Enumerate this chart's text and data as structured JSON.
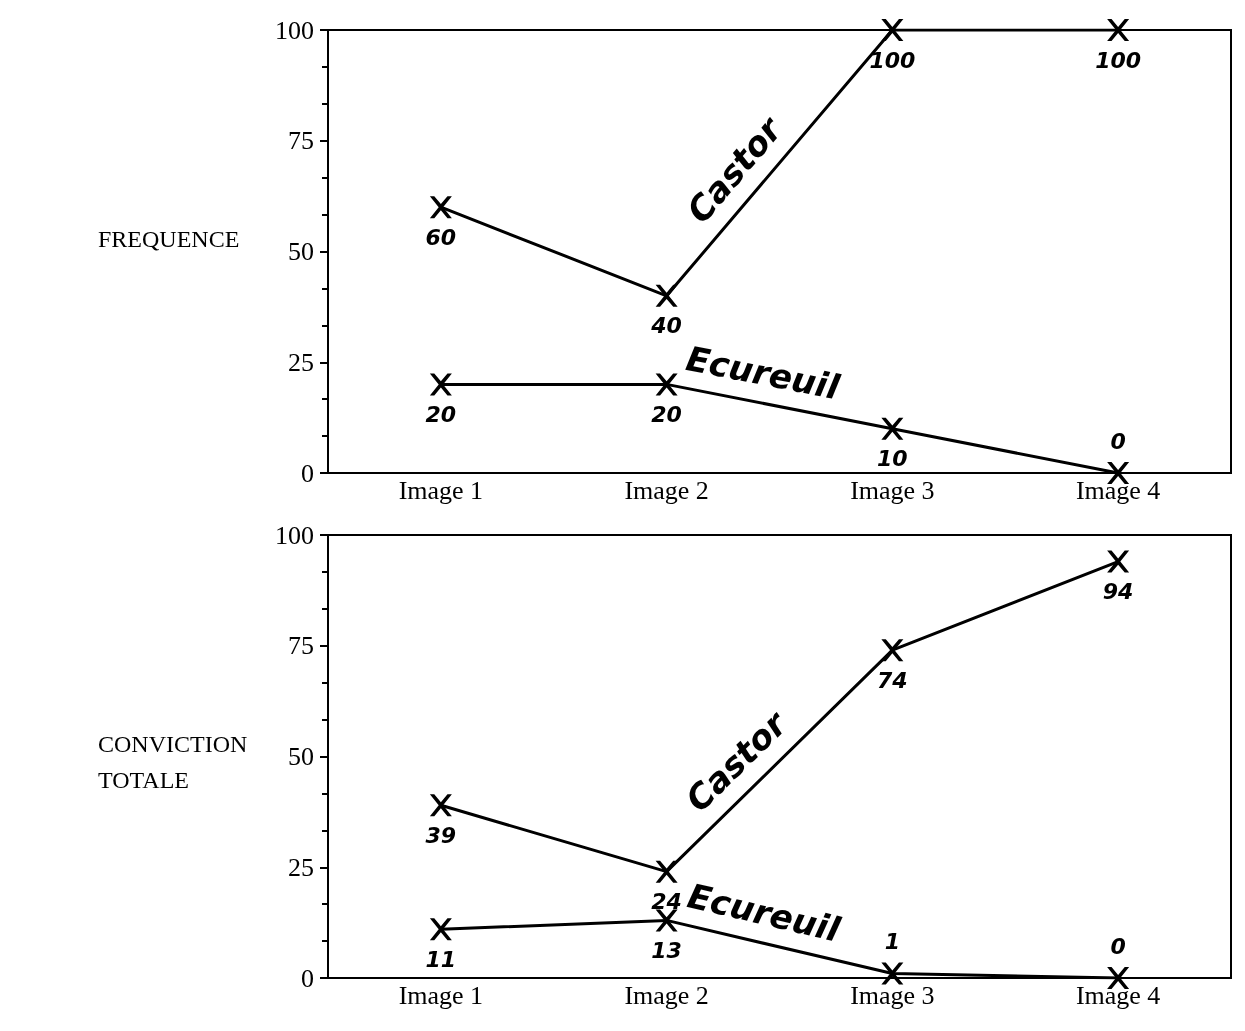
{
  "chart_data": [
    {
      "type": "line",
      "ylabel": "FREQUENCE",
      "categories": [
        "Image 1",
        "Image 2",
        "Image 3",
        "Image 4"
      ],
      "ylim": [
        0,
        100
      ],
      "yticks": [
        0,
        25,
        50,
        75,
        100
      ],
      "marker": "cross",
      "data_labels": true,
      "legend": false,
      "grid": false,
      "series": [
        {
          "name": "Castor",
          "color": "#000000",
          "values": [
            60,
            40,
            100,
            100
          ]
        },
        {
          "name": "Ecureuil",
          "color": "#000000",
          "values": [
            20,
            20,
            10,
            0
          ]
        }
      ]
    },
    {
      "type": "line",
      "ylabel": "CONVICTION TOTALE",
      "categories": [
        "Image 1",
        "Image 2",
        "Image 3",
        "Image 4"
      ],
      "ylim": [
        0,
        100
      ],
      "yticks": [
        0,
        25,
        50,
        75,
        100
      ],
      "marker": "cross",
      "data_labels": true,
      "legend": false,
      "grid": false,
      "series": [
        {
          "name": "Castor",
          "color": "#000000",
          "values": [
            39,
            24,
            74,
            94
          ]
        },
        {
          "name": "Ecureuil",
          "color": "#000000",
          "values": [
            11,
            13,
            1,
            0
          ]
        }
      ]
    }
  ]
}
